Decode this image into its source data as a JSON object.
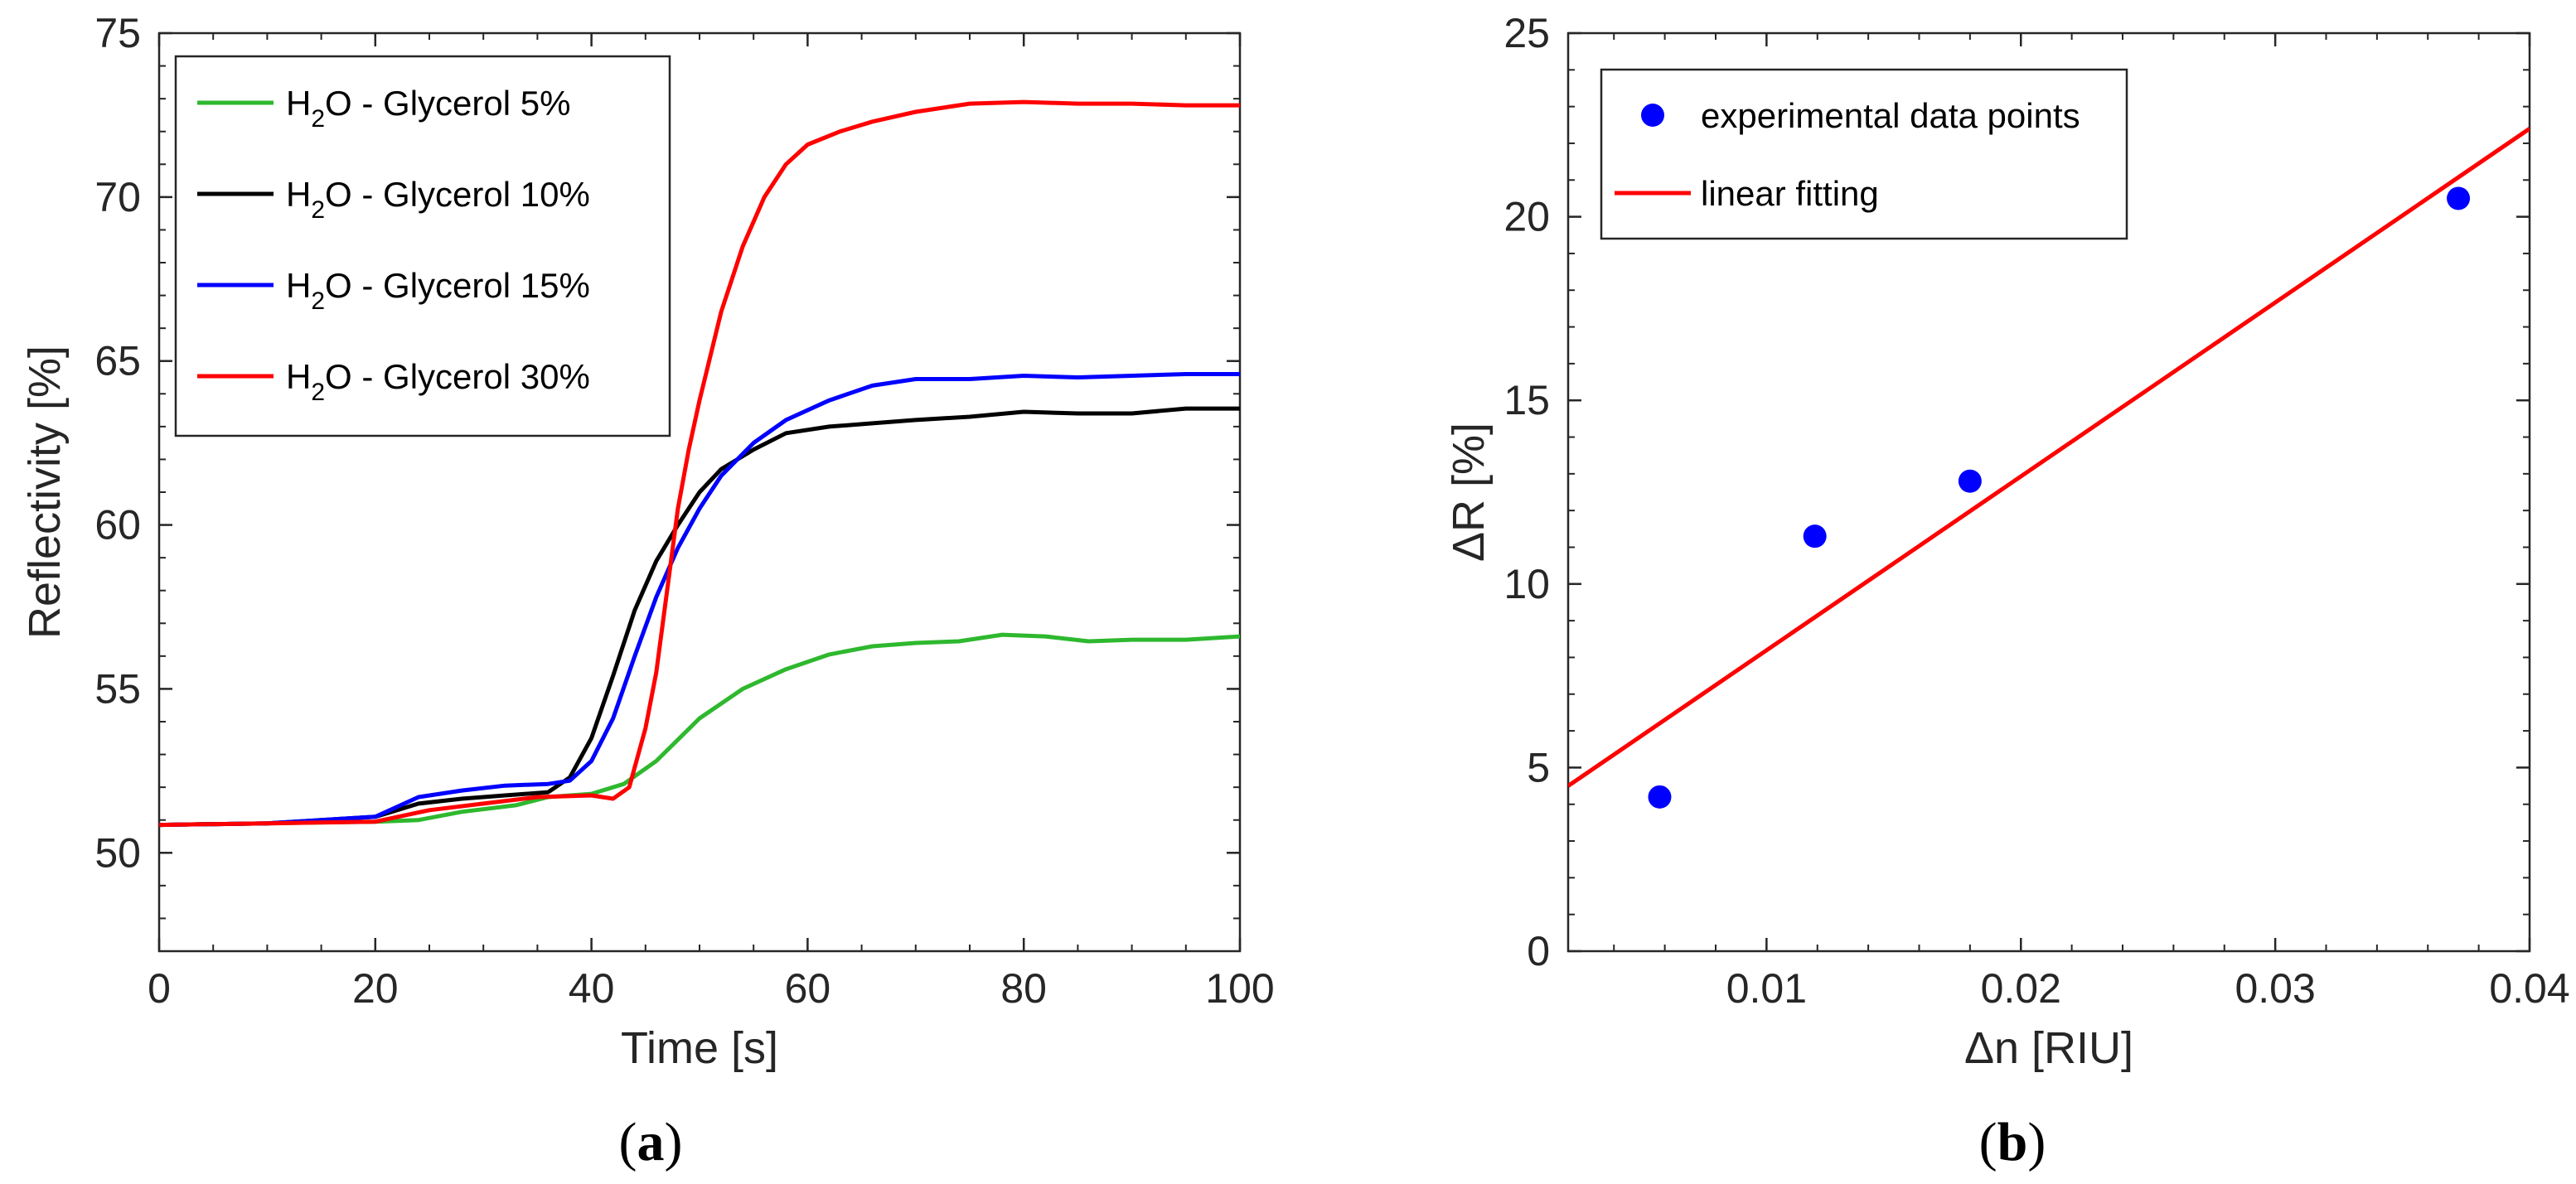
{
  "chart_data": [
    {
      "type": "line",
      "panel_label": {
        "open": "(",
        "letter": "a",
        "close": ")"
      },
      "xlabel": "Time [s]",
      "ylabel": "Reflectivity [%]",
      "xlim": [
        0,
        100
      ],
      "ylim": [
        47,
        75
      ],
      "xticks": [
        "0",
        "20",
        "40",
        "60",
        "80",
        "100"
      ],
      "xtick_values": [
        0,
        20,
        40,
        60,
        80,
        100
      ],
      "yticks": [
        "50",
        "55",
        "60",
        "65",
        "70",
        "75"
      ],
      "ytick_values": [
        50,
        55,
        60,
        65,
        70,
        75
      ],
      "grid": false,
      "legend_position": "top-left",
      "series": [
        {
          "name": "H2O - Glycerol 5%",
          "legend": {
            "pre": "H",
            "sub": "2",
            "post": "O - Glycerol 5%"
          },
          "color": "#2eb82e",
          "x": [
            0,
            10,
            20,
            24,
            28,
            33,
            36,
            40,
            43,
            46,
            50,
            54,
            58,
            62,
            66,
            70,
            74,
            78,
            82,
            86,
            90,
            95,
            100
          ],
          "y": [
            50.85,
            50.9,
            50.95,
            51.0,
            51.25,
            51.45,
            51.7,
            51.8,
            52.1,
            52.8,
            54.1,
            55.0,
            55.6,
            56.05,
            56.3,
            56.4,
            56.45,
            56.65,
            56.6,
            56.45,
            56.5,
            56.5,
            56.6
          ]
        },
        {
          "name": "H2O - Glycerol 10%",
          "legend": {
            "pre": "H",
            "sub": "2",
            "post": "O - Glycerol 10%"
          },
          "color": "#000000",
          "x": [
            0,
            10,
            20,
            24,
            28,
            32,
            36,
            38,
            40,
            42,
            44,
            46,
            48,
            50,
            52,
            55,
            58,
            62,
            66,
            70,
            75,
            80,
            85,
            90,
            95,
            100
          ],
          "y": [
            50.85,
            50.9,
            51.1,
            51.5,
            51.65,
            51.75,
            51.85,
            52.3,
            53.5,
            55.4,
            57.4,
            58.9,
            60.0,
            61.0,
            61.7,
            62.3,
            62.8,
            63.0,
            63.1,
            63.2,
            63.3,
            63.45,
            63.4,
            63.4,
            63.55,
            63.55
          ]
        },
        {
          "name": "H2O - Glycerol 15%",
          "legend": {
            "pre": "H",
            "sub": "2",
            "post": "O - Glycerol 15%"
          },
          "color": "#0000ff",
          "x": [
            0,
            10,
            20,
            22,
            24,
            28,
            32,
            36,
            38,
            40,
            42,
            44,
            46,
            48,
            50,
            52,
            55,
            58,
            62,
            66,
            70,
            75,
            80,
            85,
            90,
            95,
            100
          ],
          "y": [
            50.85,
            50.9,
            51.1,
            51.4,
            51.7,
            51.9,
            52.05,
            52.1,
            52.2,
            52.8,
            54.1,
            56.0,
            57.8,
            59.3,
            60.5,
            61.5,
            62.5,
            63.2,
            63.8,
            64.25,
            64.45,
            64.45,
            64.55,
            64.5,
            64.55,
            64.6,
            64.6
          ]
        },
        {
          "name": "H2O - Glycerol 30%",
          "legend": {
            "pre": "H",
            "sub": "2",
            "post": "O - Glycerol 30%"
          },
          "color": "#ff0000",
          "x": [
            0,
            10,
            20,
            25,
            30,
            35,
            40,
            42,
            43.5,
            45,
            46,
            47,
            48,
            49,
            50,
            52,
            54,
            56,
            58,
            60,
            63,
            66,
            70,
            75,
            80,
            85,
            90,
            95,
            100
          ],
          "y": [
            50.85,
            50.9,
            50.95,
            51.3,
            51.5,
            51.7,
            51.75,
            51.65,
            52.0,
            53.8,
            55.5,
            58.0,
            60.5,
            62.3,
            63.8,
            66.5,
            68.5,
            70.0,
            71.0,
            71.6,
            72.0,
            72.3,
            72.6,
            72.85,
            72.9,
            72.85,
            72.85,
            72.8,
            72.8
          ]
        }
      ]
    },
    {
      "type": "scatter",
      "panel_label": {
        "open": "(",
        "letter": "b",
        "close": ")"
      },
      "xlabel": "Δn [RIU]",
      "ylabel": "ΔR [%]",
      "xlim": [
        0.0022,
        0.04
      ],
      "ylim": [
        0,
        25
      ],
      "xticks": [
        "0.01",
        "0.02",
        "0.03",
        "0.04"
      ],
      "xtick_values": [
        0.01,
        0.02,
        0.03,
        0.04
      ],
      "yticks": [
        "0",
        "5",
        "10",
        "15",
        "20",
        "25"
      ],
      "ytick_values": [
        0,
        5,
        10,
        15,
        20,
        25
      ],
      "grid": false,
      "legend_position": "top-left",
      "series": [
        {
          "name": "experimental data points",
          "marker": "circle",
          "color": "#0000ff",
          "x": [
            0.0058,
            0.0119,
            0.018,
            0.0372
          ],
          "y": [
            4.2,
            11.3,
            12.8,
            20.5
          ]
        },
        {
          "name": "linear fitting",
          "line": true,
          "color": "#ff0000",
          "x": [
            0.0022,
            0.04
          ],
          "y": [
            4.5,
            22.4
          ]
        }
      ]
    }
  ]
}
